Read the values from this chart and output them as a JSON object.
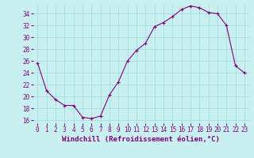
{
  "hours": [
    0,
    1,
    2,
    3,
    4,
    5,
    6,
    7,
    8,
    9,
    10,
    11,
    12,
    13,
    14,
    15,
    16,
    17,
    18,
    19,
    20,
    21,
    22,
    23
  ],
  "windchill": [
    25.7,
    21.0,
    19.5,
    18.5,
    18.5,
    16.5,
    16.3,
    16.7,
    20.3,
    22.5,
    26.0,
    27.8,
    29.0,
    31.8,
    32.5,
    33.5,
    34.7,
    35.3,
    35.0,
    34.2,
    34.0,
    32.0,
    25.2,
    24.0
  ],
  "line_color": "#800080",
  "marker": "+",
  "background_color": "#c8f0f0",
  "grid_color": "#a0d8d8",
  "xlabel": "Windchill (Refroidissement éolien,°C)",
  "ylim": [
    15.5,
    35.5
  ],
  "xlim": [
    -0.5,
    23.5
  ],
  "yticks": [
    16,
    18,
    20,
    22,
    24,
    26,
    28,
    30,
    32,
    34
  ],
  "xticks": [
    0,
    1,
    2,
    3,
    4,
    5,
    6,
    7,
    8,
    9,
    10,
    11,
    12,
    13,
    14,
    15,
    16,
    17,
    18,
    19,
    20,
    21,
    22,
    23
  ],
  "axis_color": "#800080",
  "font_family": "monospace",
  "tick_fontsize": 5.5,
  "xlabel_fontsize": 6.5
}
